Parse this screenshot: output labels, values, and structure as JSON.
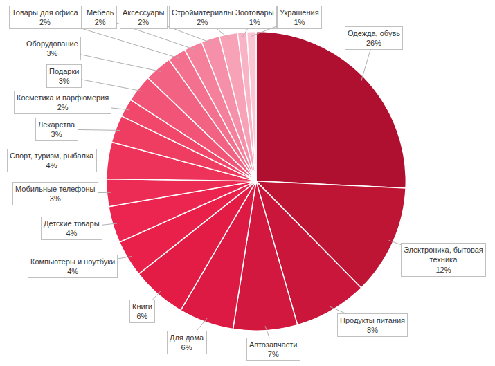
{
  "chart_data": {
    "type": "pie",
    "categories": [
      "Одежда, обувь",
      "Электроника, бытовая техника",
      "Продукты питания",
      "Автозапчасти",
      "Для дома",
      "Книги",
      "Компьютеры и ноутбуки",
      "Детские товары",
      "Мобильные телефоны",
      "Спорт, туризм, рыбалка",
      "Лекарства",
      "Косметика и парфюмерия",
      "Подарки",
      "Оборудование",
      "Товары для офиса",
      "Мебель",
      "Аксессуары",
      "Стройматериалы",
      "Зоотовары",
      "Украшения"
    ],
    "values": [
      26,
      12,
      8,
      7,
      6,
      6,
      4,
      4,
      3,
      4,
      3,
      2,
      3,
      3,
      2,
      2,
      2,
      2,
      1,
      1
    ],
    "value_labels": [
      "26%",
      "12%",
      "8%",
      "7%",
      "6%",
      "6%",
      "4%",
      "4%",
      "3%",
      "4%",
      "3%",
      "2%",
      "3%",
      "3%",
      "2%",
      "2%",
      "2%",
      "2%",
      "1%",
      "1%"
    ],
    "colors": [
      "#b01030",
      "#bf1535",
      "#c9163a",
      "#d3183f",
      "#dc1a43",
      "#e31c46",
      "#e8204a",
      "#eb2550",
      "#ec2c55",
      "#ee335a",
      "#ef3d62",
      "#f0476a",
      "#f15476",
      "#f26283",
      "#f3718f",
      "#f5809b",
      "#f690aa",
      "#f8a2b8",
      "#f9b3c6",
      "#fbc5d3"
    ],
    "data_labels": true
  }
}
